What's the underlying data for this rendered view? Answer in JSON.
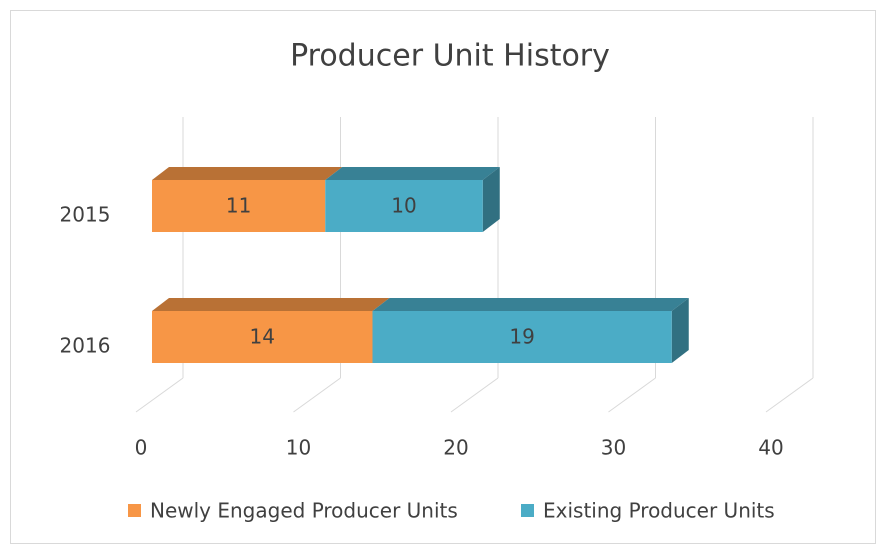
{
  "chart_data": {
    "type": "bar",
    "orientation": "horizontal",
    "stacked": true,
    "three_d": true,
    "title": "Producer Unit History",
    "categories": [
      "2015",
      "2016"
    ],
    "series": [
      {
        "name": "Newly Engaged Producer Units",
        "color": "#f79646",
        "values": [
          11,
          14
        ]
      },
      {
        "name": "Existing Producer Units",
        "color": "#4bacc6",
        "values": [
          10,
          19
        ]
      }
    ],
    "xlim": [
      0,
      40
    ],
    "xticks": [
      0,
      10,
      20,
      30,
      40
    ],
    "grid": true,
    "legend": "bottom"
  }
}
